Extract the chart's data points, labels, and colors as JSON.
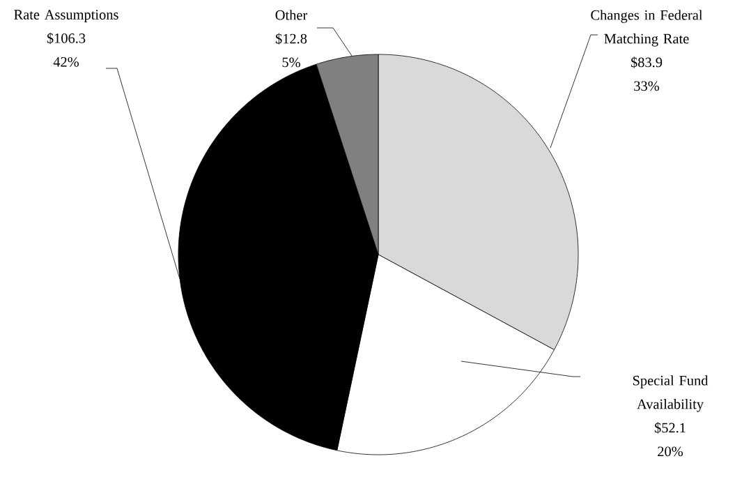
{
  "chart_data": {
    "type": "pie",
    "categories": [
      "Changes in Federal Matching Rate",
      "Special Fund Availability",
      "Rate Assumptions",
      "Other"
    ],
    "values": [
      83.9,
      52.1,
      106.3,
      12.8
    ],
    "colors": [
      "#d9d9d9",
      "#ffffff",
      "#000000",
      "#808080"
    ],
    "value_labels": [
      "$83.9",
      "$52.1",
      "$106.3",
      "$12.8"
    ],
    "annotations": [
      "33%",
      "20%",
      "42%",
      "5%"
    ]
  }
}
